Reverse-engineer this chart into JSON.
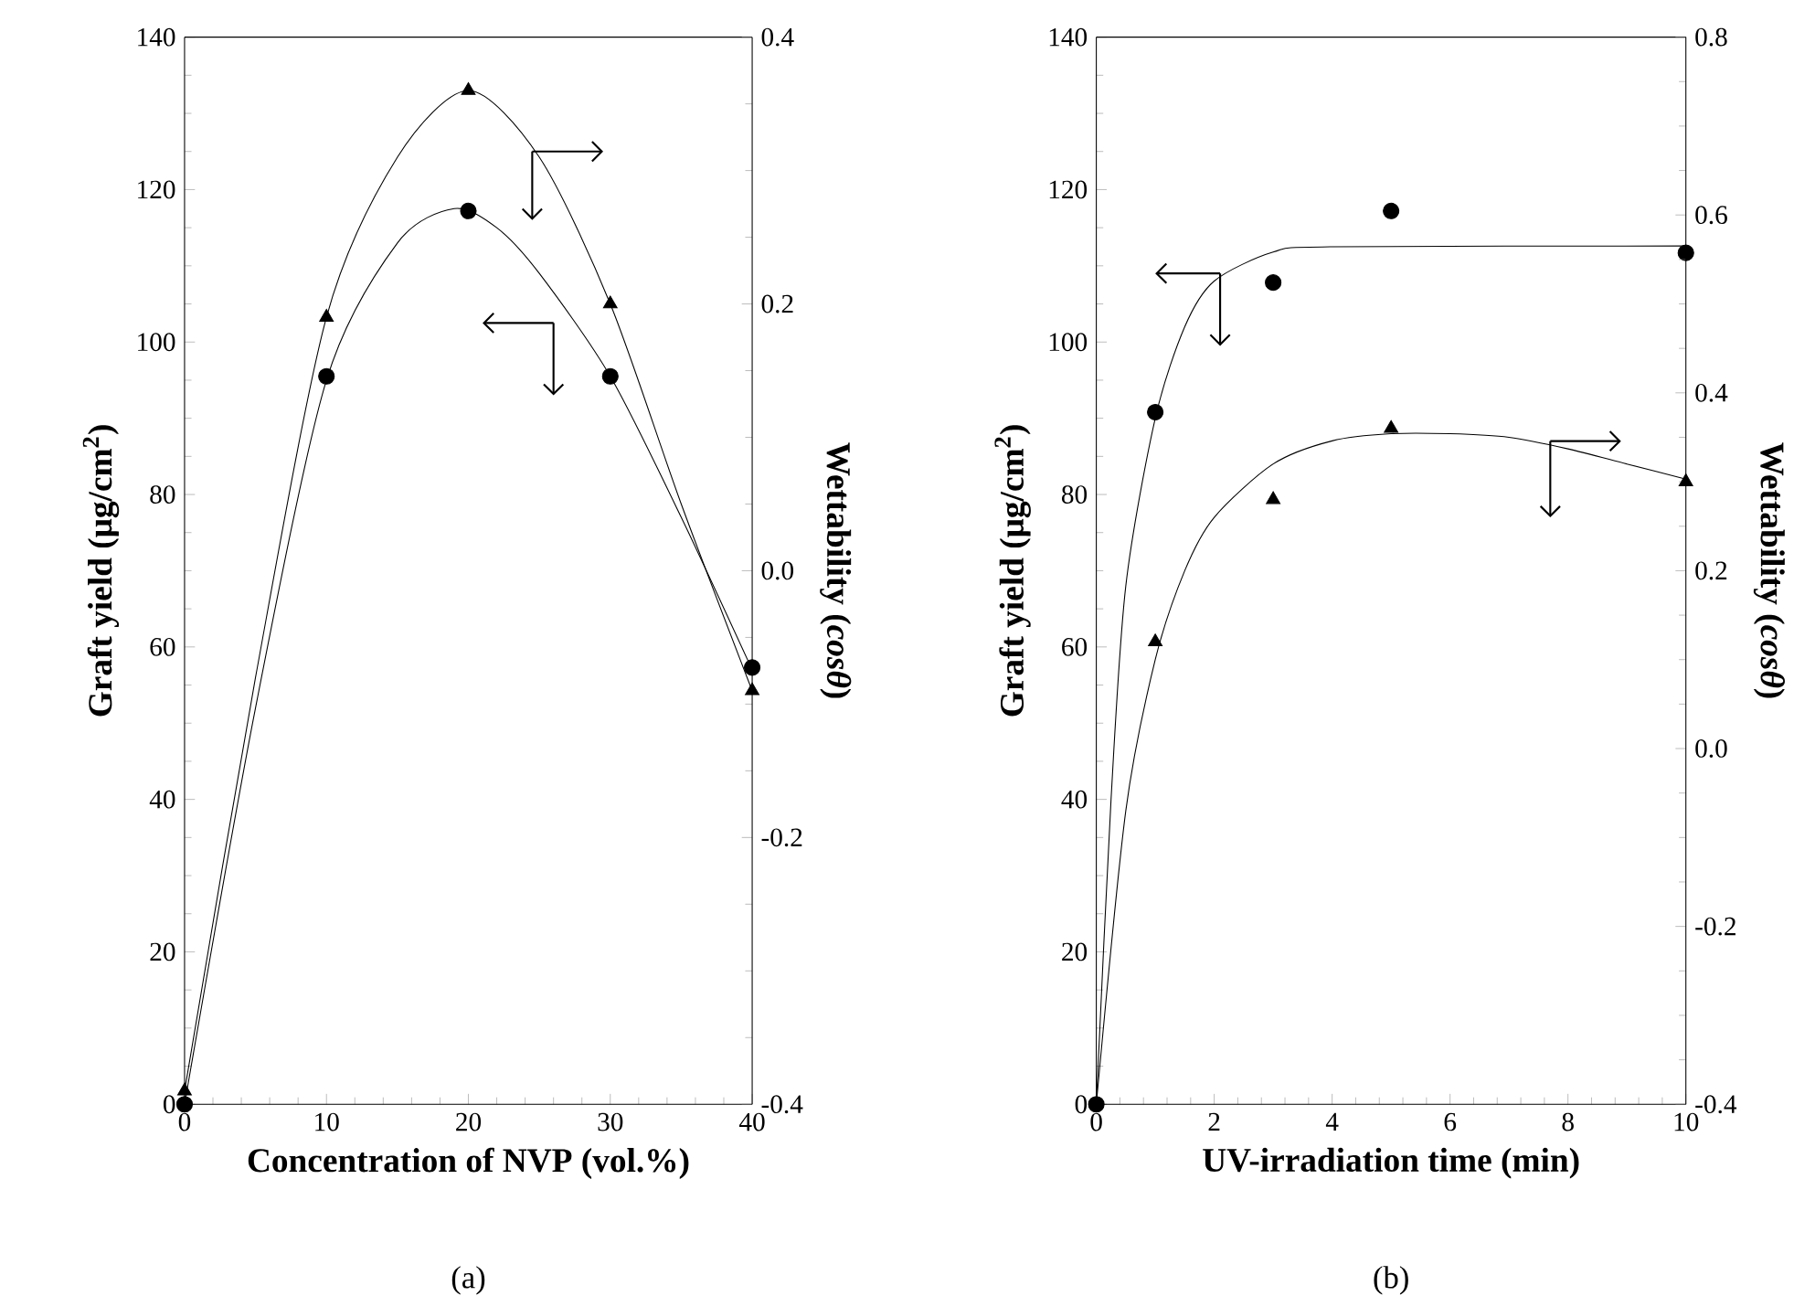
{
  "chart_data": [
    {
      "type": "scatter",
      "xlabel": "Concentration of NVP (vol.%)",
      "ylabel": "Graft yield (μg/cm$^{2}$)",
      "y2label": "Wettability (*cosθ*)",
      "annotations": [
        "(a)"
      ],
      "xlim": [
        0,
        40
      ],
      "xticks": [
        0,
        10,
        20,
        30,
        40
      ],
      "ylim": [
        0,
        140
      ],
      "yticks": [
        0,
        20,
        40,
        60,
        80,
        100,
        120,
        140
      ],
      "y2lim": [
        -0.4,
        0.4
      ],
      "y2ticks": [
        -0.4,
        -0.2,
        {
          "value": 0,
          "label": "0.0"
        },
        0.2,
        0.4
      ],
      "series": [
        {
          "marker": "circle",
          "color": "#000000",
          "x": [
            0,
            10,
            20,
            30,
            40
          ],
          "values": [
            0,
            95.5,
            117.2,
            95.5,
            57.3
          ]
        },
        {
          "type": "line",
          "marker": "none",
          "color": "#000000",
          "x": [
            0,
            5,
            10,
            15,
            19,
            22,
            25,
            30,
            35,
            40
          ],
          "values": [
            0,
            52,
            95,
            113,
            117.5,
            115,
            109,
            95.5,
            77,
            57
          ]
        },
        {
          "axis": "y2",
          "marker": "triangle",
          "color": "#000000",
          "x": [
            0,
            10,
            20,
            30,
            40
          ],
          "values": [
            -0.39,
            0.19,
            0.36,
            0.2,
            -0.09
          ]
        },
        {
          "type": "line",
          "axis": "y2",
          "marker": "none",
          "color": "#000000",
          "x": [
            0,
            5,
            10,
            15,
            20,
            25,
            30,
            35,
            40
          ],
          "values": [
            -0.39,
            -0.08,
            0.19,
            0.31,
            0.36,
            0.31,
            0.2,
            0.05,
            -0.09
          ]
        }
      ]
    },
    {
      "type": "scatter",
      "xlabel": "UV-irradiation time (min)",
      "ylabel": "Graft yield (μg/cm$^{2}$)",
      "y2label": "Wettability (*cosθ*)",
      "annotations": [
        "(b)"
      ],
      "xlim": [
        0,
        10
      ],
      "xticks": [
        0,
        2,
        4,
        6,
        8,
        10
      ],
      "ylim": [
        0,
        140
      ],
      "yticks": [
        0,
        20,
        40,
        60,
        80,
        100,
        120,
        140
      ],
      "y2lim": [
        -0.4,
        0.8
      ],
      "y2ticks": [
        -0.4,
        -0.2,
        {
          "value": 0,
          "label": "0.0"
        },
        0.2,
        0.4,
        0.6,
        0.8
      ],
      "series": [
        {
          "marker": "circle",
          "color": "#000000",
          "x": [
            0,
            1,
            3,
            5,
            10
          ],
          "values": [
            0,
            90.8,
            107.8,
            117.2,
            111.7
          ]
        },
        {
          "type": "line",
          "marker": "none",
          "color": "#000000",
          "x": [
            0,
            0.25,
            0.5,
            1,
            1.5,
            2,
            3,
            4,
            10
          ],
          "values": [
            0,
            40,
            68,
            90,
            102,
            108,
            111.8,
            112.5,
            112.6
          ]
        },
        {
          "type": "scatter",
          "axis": "y2",
          "marker": "triangle",
          "color": "#000000",
          "x": [
            1,
            3,
            5,
            10
          ],
          "values": [
            0.12,
            0.28,
            0.36,
            0.3
          ]
        },
        {
          "type": "line",
          "axis": "y2",
          "marker": "none",
          "color": "#000000",
          "x": [
            0,
            0.5,
            1,
            1.5,
            2,
            3,
            4,
            5,
            6,
            7,
            8,
            9,
            10
          ],
          "values": [
            -0.4,
            -0.07,
            0.1,
            0.2,
            0.26,
            0.32,
            0.346,
            0.354,
            0.354,
            0.35,
            0.337,
            0.32,
            0.303
          ]
        }
      ]
    }
  ]
}
